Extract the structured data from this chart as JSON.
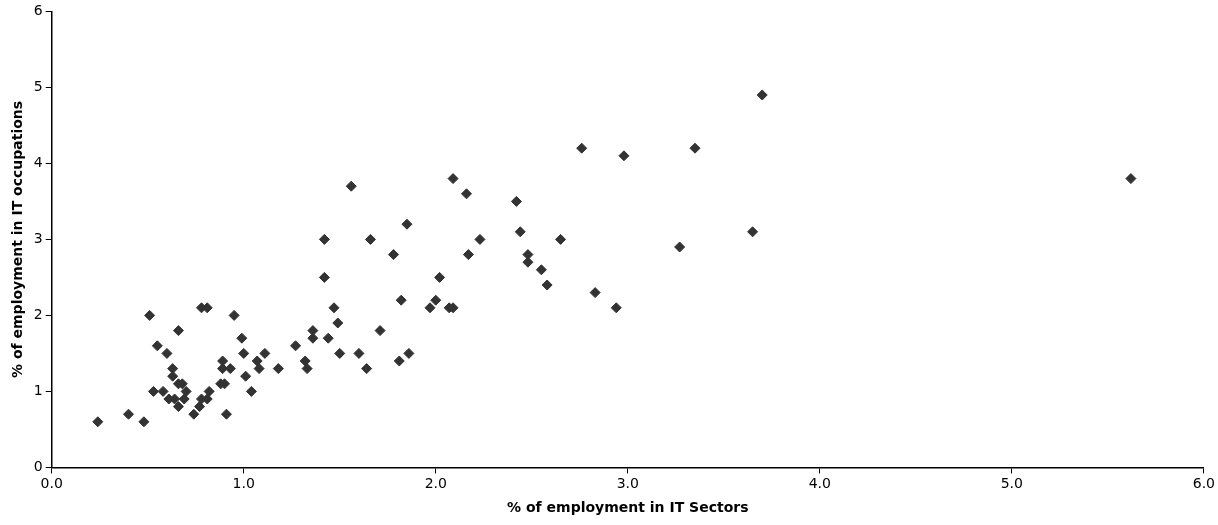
{
  "chart_data": {
    "type": "scatter",
    "xlabel": "% of employment in IT Sectors",
    "ylabel": "% of employment in IT occupations",
    "x": [
      0.24,
      0.4,
      0.48,
      0.51,
      0.53,
      0.55,
      0.58,
      0.6,
      0.61,
      0.63,
      0.63,
      0.64,
      0.66,
      0.66,
      0.66,
      0.68,
      0.69,
      0.7,
      0.74,
      0.77,
      0.78,
      0.78,
      0.81,
      0.81,
      0.82,
      0.88,
      0.89,
      0.89,
      0.9,
      0.91,
      0.93,
      0.95,
      0.99,
      1.0,
      1.01,
      1.04,
      1.07,
      1.08,
      1.11,
      1.18,
      1.27,
      1.32,
      1.33,
      1.36,
      1.36,
      1.42,
      1.42,
      1.44,
      1.47,
      1.49,
      1.5,
      1.56,
      1.6,
      1.64,
      1.66,
      1.71,
      1.78,
      1.81,
      1.82,
      1.85,
      1.86,
      1.97,
      2.0,
      2.02,
      2.07,
      2.09,
      2.09,
      2.16,
      2.17,
      2.23,
      2.42,
      2.44,
      2.48,
      2.48,
      2.55,
      2.58,
      2.65,
      2.76,
      2.83,
      2.94,
      2.98,
      3.27,
      3.35,
      3.65,
      3.7,
      5.62
    ],
    "values": [
      0.6,
      0.7,
      0.6,
      2.0,
      1.0,
      1.6,
      1.0,
      1.5,
      0.9,
      1.3,
      1.2,
      0.9,
      1.8,
      1.1,
      0.8,
      1.1,
      0.9,
      1.0,
      0.7,
      0.8,
      2.1,
      0.9,
      2.1,
      0.9,
      1.0,
      1.1,
      1.3,
      1.4,
      1.1,
      0.7,
      1.3,
      2.0,
      1.7,
      1.5,
      1.2,
      1.0,
      1.4,
      1.3,
      1.5,
      1.3,
      1.6,
      1.4,
      1.3,
      1.8,
      1.7,
      2.5,
      3.0,
      1.7,
      2.1,
      1.9,
      1.5,
      3.7,
      1.5,
      1.3,
      3.0,
      1.8,
      2.8,
      1.4,
      2.2,
      3.2,
      1.5,
      2.1,
      2.2,
      2.5,
      2.1,
      2.1,
      3.8,
      3.6,
      2.8,
      3.0,
      3.5,
      3.1,
      2.8,
      2.7,
      2.6,
      2.4,
      3.0,
      4.2,
      2.3,
      2.1,
      4.1,
      2.9,
      4.2,
      3.1,
      4.9,
      3.8
    ],
    "color": "#333333",
    "marker": "diamond",
    "grid": false,
    "legend": false,
    "xlim": [
      0,
      6
    ],
    "xticks": [
      {
        "value": 0,
        "label": "0.0"
      },
      {
        "value": 1,
        "label": "1.0"
      },
      {
        "value": 2,
        "label": "2.0"
      },
      {
        "value": 3,
        "label": "3.0"
      },
      {
        "value": 4,
        "label": "4.0"
      },
      {
        "value": 5,
        "label": "5.0"
      },
      {
        "value": 6,
        "label": "6.0"
      }
    ],
    "ylim": [
      0,
      6
    ],
    "yticks": [
      0,
      1,
      2,
      3,
      4,
      5,
      6
    ]
  }
}
